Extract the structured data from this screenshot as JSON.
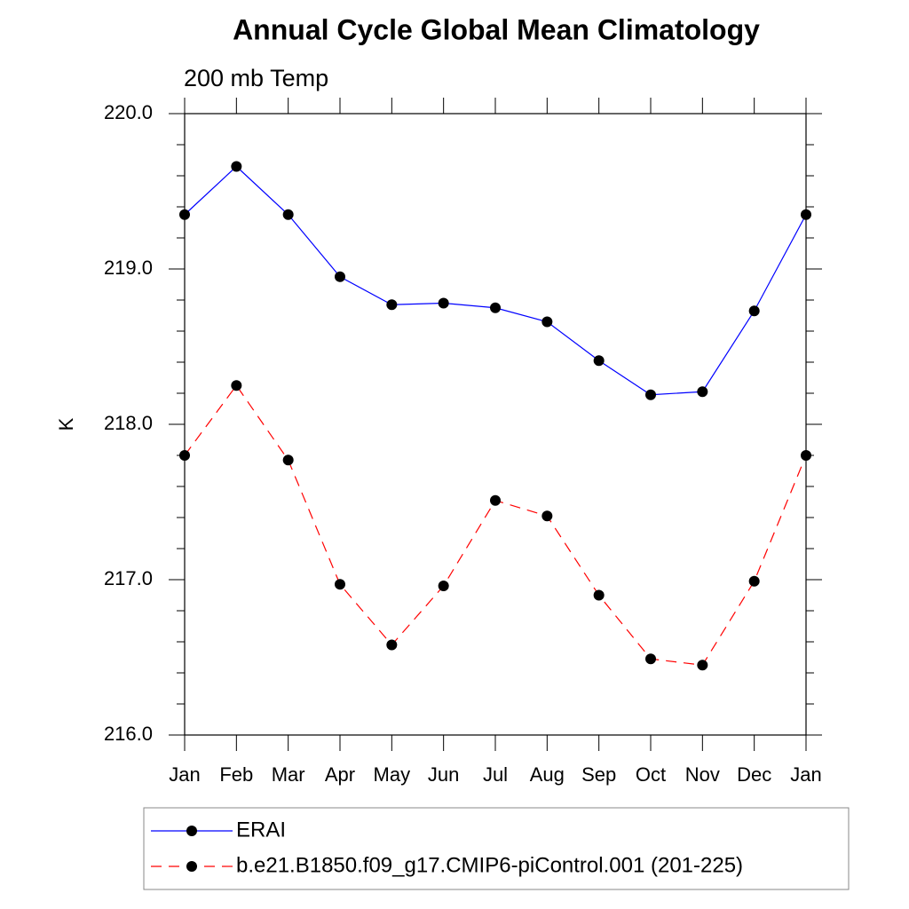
{
  "chart_data": {
    "type": "line",
    "title": "Annual Cycle Global Mean Climatology",
    "subtitle": "200 mb Temp",
    "y_label": "K",
    "categories": [
      "Jan",
      "Feb",
      "Mar",
      "Apr",
      "May",
      "Jun",
      "Jul",
      "Aug",
      "Sep",
      "Oct",
      "Nov",
      "Dec",
      "Jan"
    ],
    "series": [
      {
        "name": "ERAI",
        "color": "#0000ff",
        "dash": "solid",
        "values": [
          219.35,
          219.66,
          219.35,
          218.95,
          218.77,
          218.78,
          218.75,
          218.66,
          218.41,
          218.19,
          218.21,
          218.73,
          219.35
        ]
      },
      {
        "name": "b.e21.B1850.f09_g17.CMIP6-piControl.001 (201-225)",
        "color": "#ff0000",
        "dash": "dashed",
        "values": [
          217.8,
          218.25,
          217.77,
          216.97,
          216.58,
          216.96,
          217.51,
          217.41,
          216.9,
          216.49,
          216.45,
          216.99,
          217.8
        ]
      }
    ],
    "ylim": [
      216,
      220
    ],
    "yticks": [
      {
        "value": 216,
        "label": "216.0"
      },
      {
        "value": 217,
        "label": "217.0"
      },
      {
        "value": 218,
        "label": "218.0"
      },
      {
        "value": 219,
        "label": "219.0"
      },
      {
        "value": 220,
        "label": "220.0"
      }
    ],
    "yminorticks": [
      216.2,
      216.4,
      216.6,
      216.8,
      217.2,
      217.4,
      217.6,
      217.8,
      218.2,
      218.4,
      218.6,
      218.8,
      219.2,
      219.4,
      219.6,
      219.8
    ],
    "grid": false,
    "legend": "bottom"
  }
}
